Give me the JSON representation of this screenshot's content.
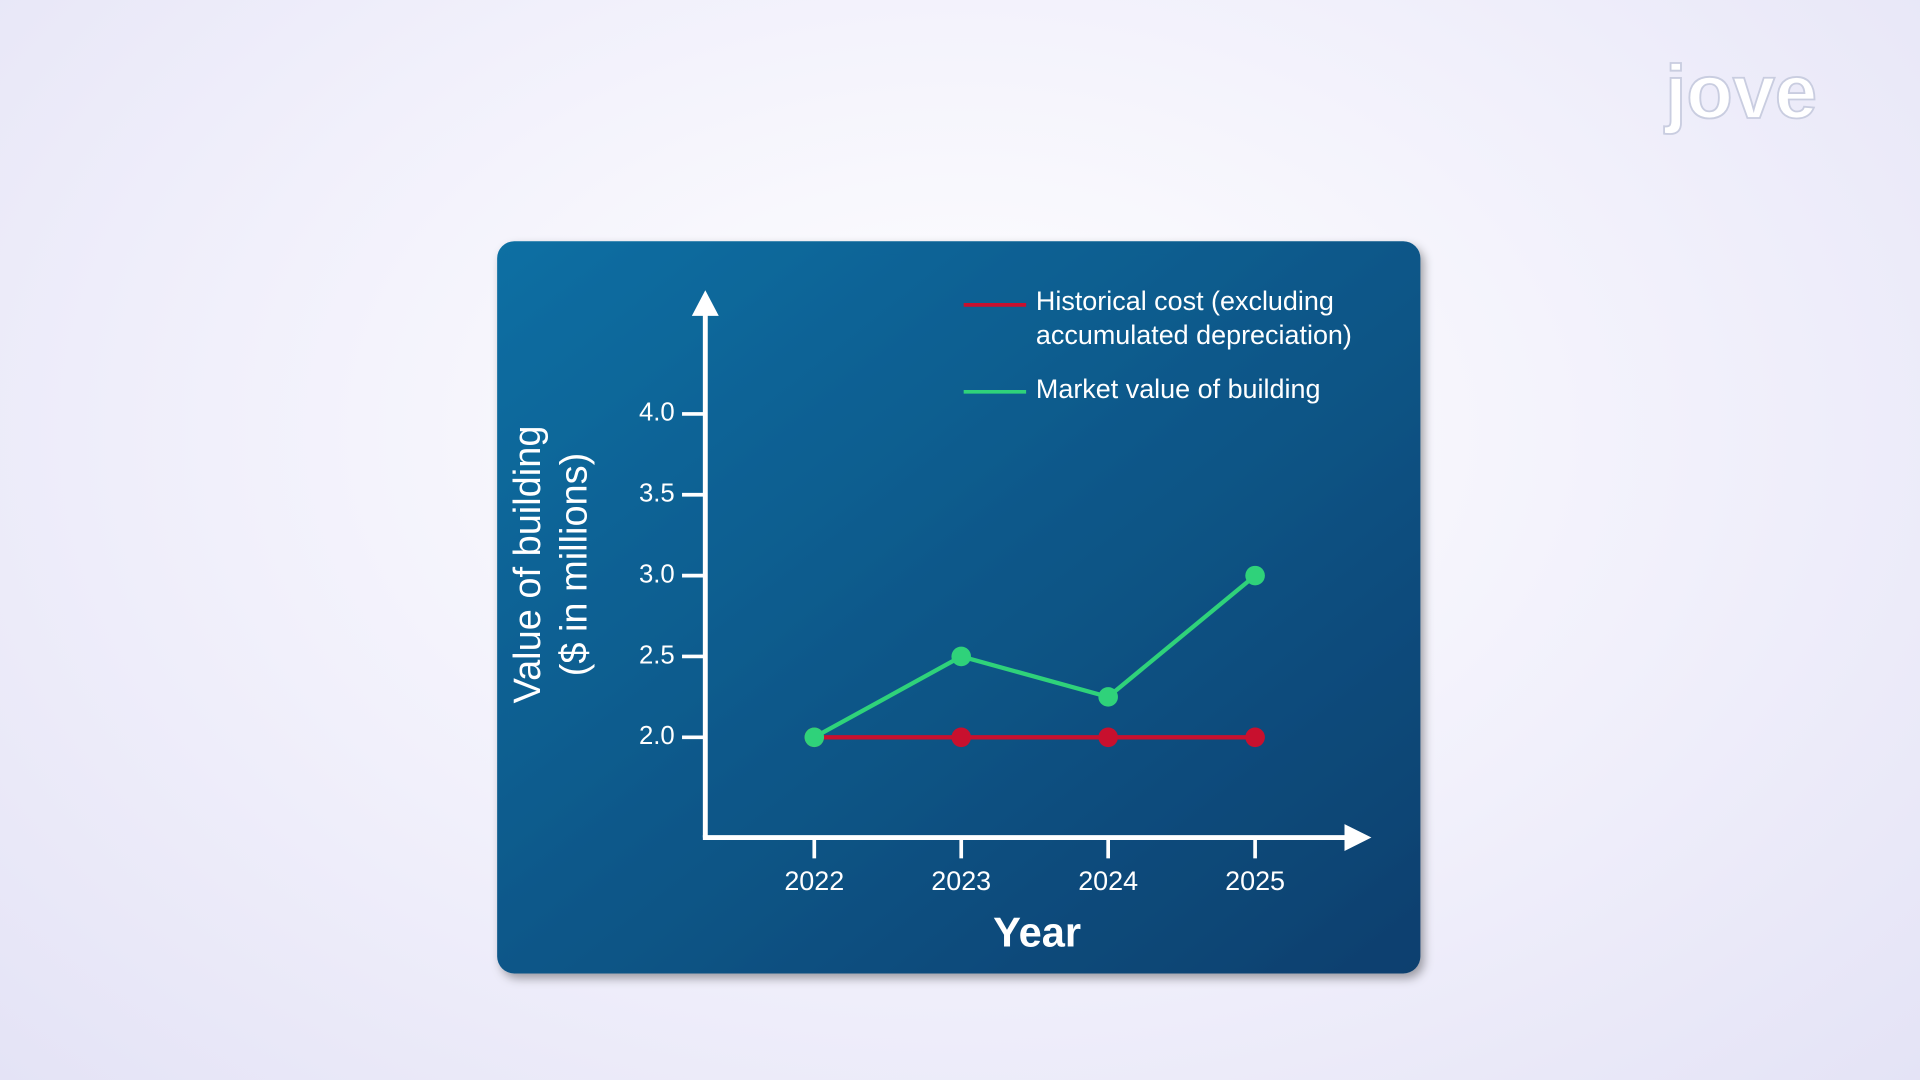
{
  "logo": "jove",
  "chart_data": {
    "type": "line",
    "y_label": [
      "Value of building",
      "($ in millions)"
    ],
    "x_label": "Year",
    "categories": [
      "2022",
      "2023",
      "2024",
      "2025"
    ],
    "series": [
      {
        "name": "Historical cost (excluding accumulated depreciation)",
        "color": "#c8102e",
        "values": [
          2.0,
          2.0,
          2.0,
          2.0
        ]
      },
      {
        "name": "Market value of building",
        "color": "#2fd27a",
        "values": [
          2.0,
          2.5,
          2.25,
          3.0
        ]
      }
    ],
    "ylim": [
      1.38,
      4.7
    ],
    "yticks": [
      {
        "value": 2,
        "label": "2.0"
      },
      {
        "value": 2.5,
        "label": "2.5"
      },
      {
        "value": 3,
        "label": "3.0"
      },
      {
        "value": 3.5,
        "label": "3.5"
      },
      {
        "value": 4,
        "label": "4.0"
      }
    ]
  }
}
